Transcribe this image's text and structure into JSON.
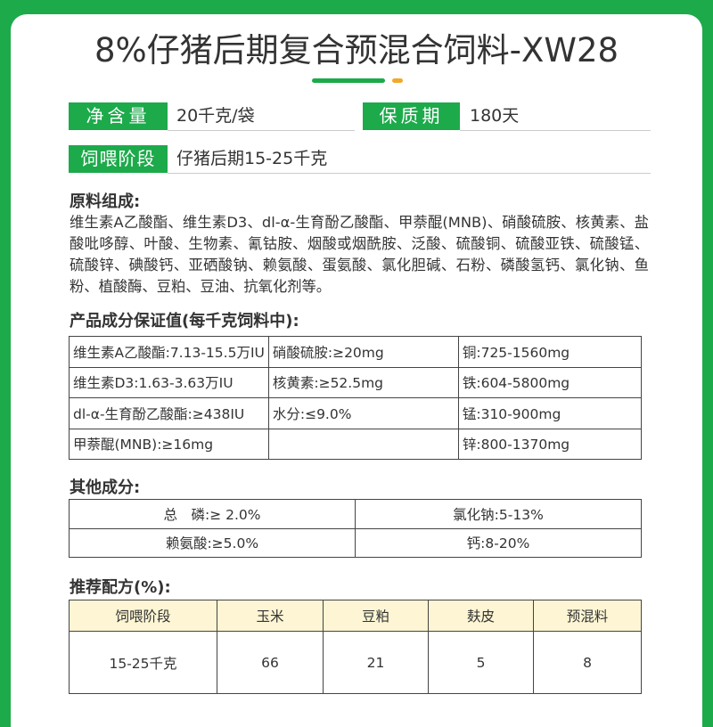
{
  "title": "8%仔猪后期复合预混合饲料-XW28",
  "colors": {
    "brand_green": "#1daa4b",
    "accent_orange": "#f0a92b",
    "header_fill": "#fdf5d3"
  },
  "info": {
    "net_label": "净含量",
    "net_value": "20千克/袋",
    "shelf_label": "保质期",
    "shelf_value": "180天",
    "stage_label": "饲喂阶段",
    "stage_value": "仔猪后期15-25千克"
  },
  "ingredients": {
    "heading": "原料组成:",
    "text": "维生素A乙酸酯、维生素D3、dl-α-生育酚乙酸酯、甲萘醌(MNB)、硝酸硫胺、核黄素、盐酸吡哆醇、叶酸、生物素、氰钴胺、烟酸或烟酰胺、泛酸、硫酸铜、硫酸亚铁、硫酸锰、硫酸锌、碘酸钙、亚硒酸钠、赖氨酸、蛋氨酸、氯化胆碱、石粉、磷酸氢钙、氯化钠、鱼粉、植酸酶、豆粕、豆油、抗氧化剂等。"
  },
  "guarantee": {
    "heading": "产品成分保证值(每千克饲料中):",
    "rows": [
      [
        "维生素A乙酸酯:7.13-15.5万IU",
        "硝酸硫胺:≥20mg",
        "铜:725-1560mg"
      ],
      [
        "维生素D3:1.63-3.63万IU",
        "核黄素:≥52.5mg",
        "铁:604-5800mg"
      ],
      [
        "dl-α-生育酚乙酸酯:≥438IU",
        "水分:≤9.0%",
        "锰:310-900mg"
      ],
      [
        "甲萘醌(MNB):≥16mg",
        "",
        "锌:800-1370mg"
      ]
    ]
  },
  "other": {
    "heading": "其他成分:",
    "rows": [
      [
        "总　磷:≥ 2.0%",
        "氯化钠:5-13%"
      ],
      [
        "赖氨酸:≥5.0%",
        "钙:8-20%"
      ]
    ]
  },
  "formula": {
    "heading": "推荐配方(%):",
    "headers": [
      "饲喂阶段",
      "玉米",
      "豆粕",
      "麸皮",
      "预混料"
    ],
    "rows": [
      [
        "15-25千克",
        "66",
        "21",
        "5",
        "8"
      ]
    ]
  }
}
